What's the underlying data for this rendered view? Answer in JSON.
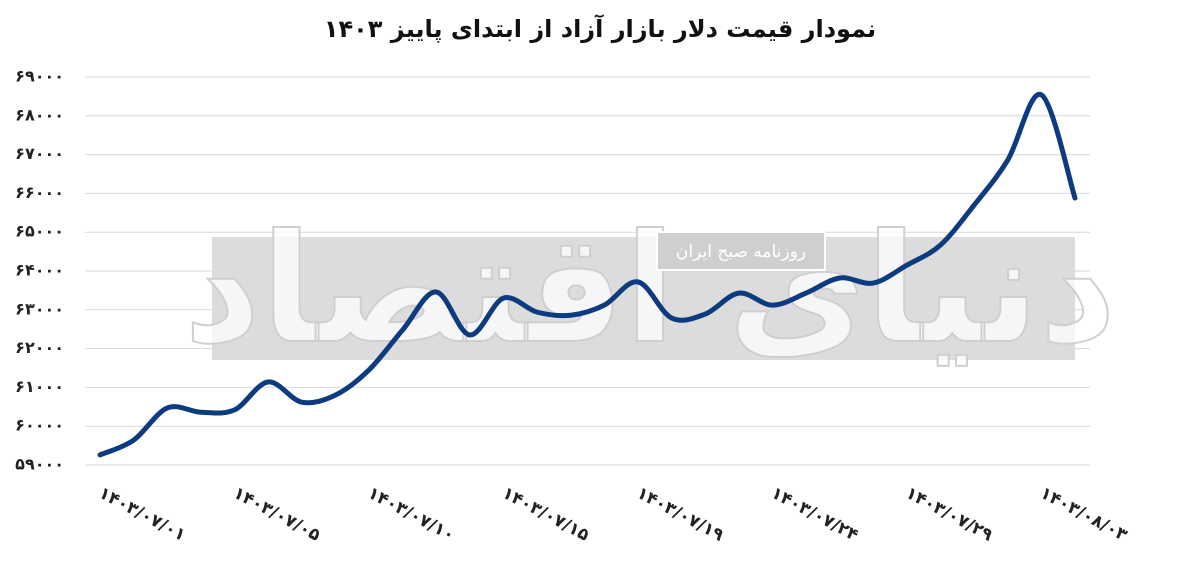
{
  "chart_data": {
    "type": "line",
    "title": "نمودار قیمت دلار بازار آزاد از ابتدای پاییز ۱۴۰۳",
    "watermark": "دنیای اقتصاد",
    "watermark_subtitle": "روزنامه صبح ایران",
    "categories": [
      "۱۴۰۳/۰۷/۰۱",
      null,
      null,
      null,
      "۱۴۰۳/۰۷/۰۵",
      null,
      null,
      null,
      "۱۴۰۳/۰۷/۱۰",
      null,
      null,
      null,
      "۱۴۰۳/۰۷/۱۵",
      null,
      null,
      null,
      "۱۴۰۳/۰۷/۱۹",
      null,
      null,
      null,
      "۱۴۰۳/۰۷/۲۴",
      null,
      null,
      null,
      "۱۴۰۳/۰۷/۲۹",
      null,
      null,
      null,
      "۱۴۰۳/۰۸/۰۳",
      null
    ],
    "series": [
      {
        "name": "قیمت دلار",
        "color": "#0d3b7f",
        "values": [
          59260,
          59640,
          60470,
          60360,
          60420,
          61140,
          60620,
          60800,
          61450,
          62480,
          63460,
          62350,
          63300,
          62940,
          62860,
          63120,
          63720,
          62790,
          62890,
          63430,
          63120,
          63430,
          63820,
          63690,
          64150,
          64670,
          65700,
          66860,
          68540,
          65880
        ]
      }
    ],
    "ylim": [
      59000,
      69000
    ],
    "yticks": [
      {
        "value": 59000,
        "label": "۵۹۰۰۰"
      },
      {
        "value": 60000,
        "label": "۶۰۰۰۰"
      },
      {
        "value": 61000,
        "label": "۶۱۰۰۰"
      },
      {
        "value": 62000,
        "label": "۶۲۰۰۰"
      },
      {
        "value": 63000,
        "label": "۶۳۰۰۰"
      },
      {
        "value": 64000,
        "label": "۶۴۰۰۰"
      },
      {
        "value": 65000,
        "label": "۶۵۰۰۰"
      },
      {
        "value": 66000,
        "label": "۶۶۰۰۰"
      },
      {
        "value": 67000,
        "label": "۶۷۰۰۰"
      },
      {
        "value": 68000,
        "label": "۶۸۰۰۰"
      },
      {
        "value": 69000,
        "label": "۶۹۰۰۰"
      }
    ],
    "grid": true
  }
}
